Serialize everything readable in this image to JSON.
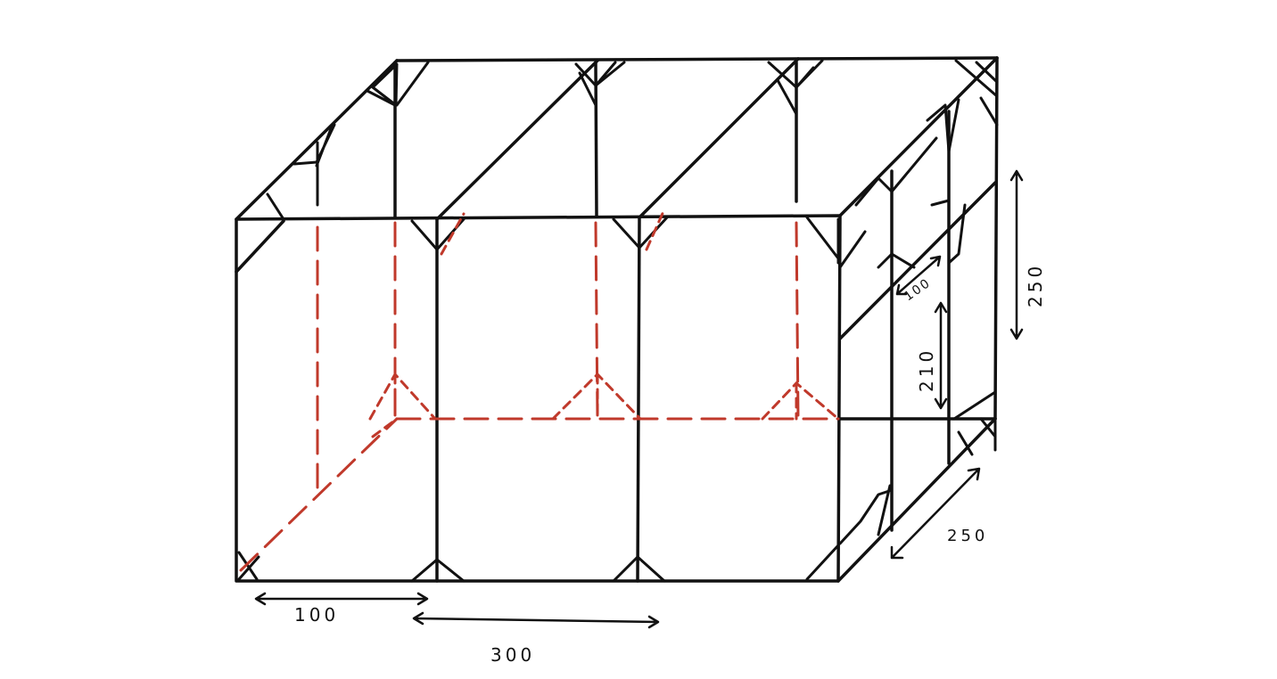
{
  "diagram": {
    "colors": {
      "frame": "#111111",
      "hidden_edges": "#c0392b",
      "background": "#ffffff"
    },
    "dimensions": {
      "front_bay_width": "100",
      "front_width": "300",
      "side_depth": "250",
      "height": "250",
      "side_bay_width": "100",
      "side_bay_height": "210"
    }
  }
}
